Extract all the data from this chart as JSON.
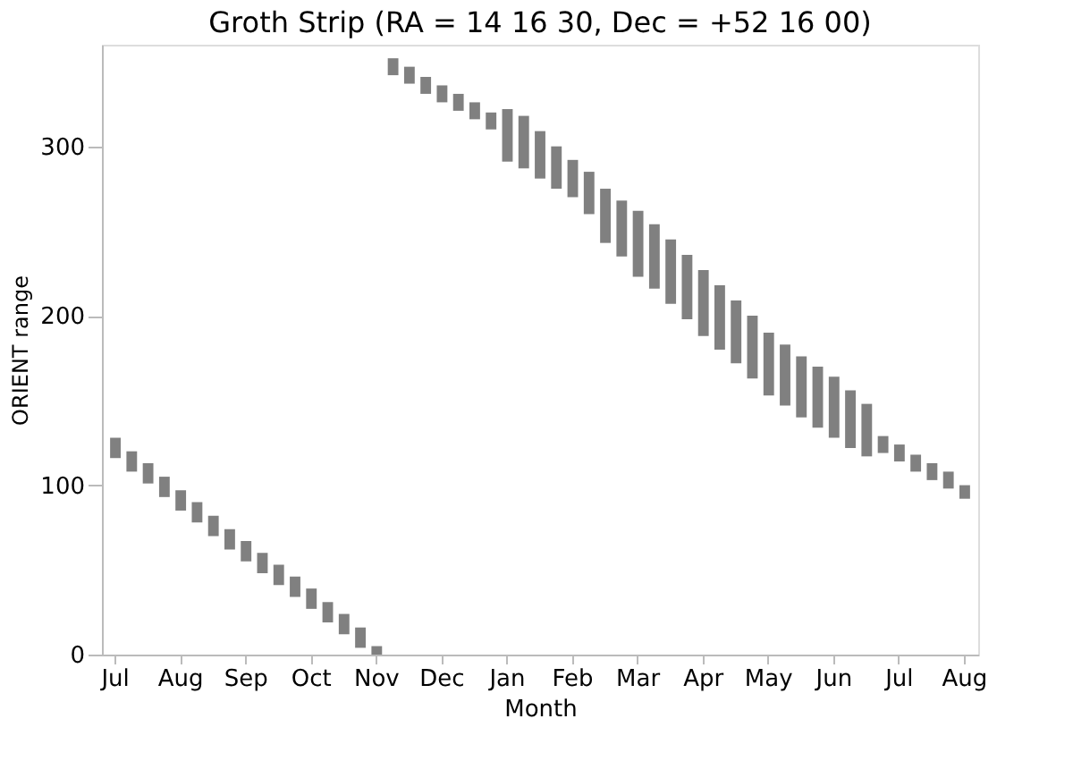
{
  "chart_data": {
    "type": "bar",
    "title": "Groth Strip (RA = 14 16 30, Dec = +52 16 00)",
    "xlabel": "Month",
    "ylabel": "ORIENT range",
    "categories": [
      "Jul",
      null,
      null,
      null,
      "Aug",
      null,
      null,
      null,
      "Sep",
      null,
      null,
      null,
      "Oct",
      null,
      null,
      null,
      "Nov",
      null,
      null,
      null,
      "Dec",
      null,
      null,
      null,
      "Jan",
      null,
      null,
      null,
      "Feb",
      null,
      null,
      null,
      "Mar",
      null,
      null,
      null,
      "Apr",
      null,
      null,
      null,
      "May",
      null,
      null,
      null,
      "Jun",
      null,
      null,
      null,
      "Jul",
      null,
      null,
      null,
      "Aug"
    ],
    "series": [
      {
        "color": "#808080",
        "base": [
          116,
          108,
          101,
          93,
          85,
          78,
          70,
          62,
          55,
          48,
          41,
          34,
          27,
          19,
          12,
          4,
          0,
          null,
          null,
          null,
          null,
          null,
          null,
          null,
          null,
          null,
          null,
          null,
          null,
          null,
          null,
          null,
          null,
          null,
          null,
          null,
          null,
          null,
          null,
          null,
          null,
          null,
          null,
          null,
          null,
          null,
          null,
          null,
          null,
          null,
          null,
          null,
          null
        ],
        "values": [
          12,
          12,
          12,
          12,
          12,
          12,
          12,
          12,
          12,
          12,
          12,
          12,
          12,
          12,
          12,
          12,
          5,
          null,
          null,
          null,
          null,
          null,
          null,
          null,
          null,
          null,
          null,
          null,
          null,
          null,
          null,
          null,
          null,
          null,
          null,
          null,
          null,
          null,
          null,
          null,
          null,
          null,
          null,
          null,
          null,
          null,
          null,
          null,
          null,
          null,
          null,
          null,
          null
        ]
      },
      {
        "color": "#808080",
        "base": [
          null,
          null,
          null,
          null,
          null,
          null,
          null,
          null,
          null,
          null,
          null,
          null,
          null,
          null,
          null,
          null,
          null,
          342,
          337,
          331,
          326,
          321,
          316,
          310,
          291,
          287,
          281,
          275,
          270,
          260,
          243,
          235,
          223,
          216,
          207,
          198,
          188,
          180,
          172,
          163,
          153,
          147,
          140,
          134,
          128,
          122,
          117,
          119,
          114,
          108,
          103,
          98,
          92
        ],
        "values": [
          null,
          null,
          null,
          null,
          null,
          null,
          null,
          null,
          null,
          null,
          null,
          null,
          null,
          null,
          null,
          null,
          null,
          10,
          10,
          10,
          10,
          10,
          10,
          10,
          31,
          31,
          28,
          25,
          22,
          25,
          32,
          33,
          39,
          38,
          38,
          38,
          39,
          38,
          37,
          37,
          37,
          36,
          36,
          36,
          36,
          34,
          31,
          10,
          10,
          10,
          10,
          10,
          8
        ]
      }
    ],
    "ylim": [
      0,
      360
    ],
    "yticks": [
      0,
      100,
      200,
      300
    ],
    "grid": false
  }
}
